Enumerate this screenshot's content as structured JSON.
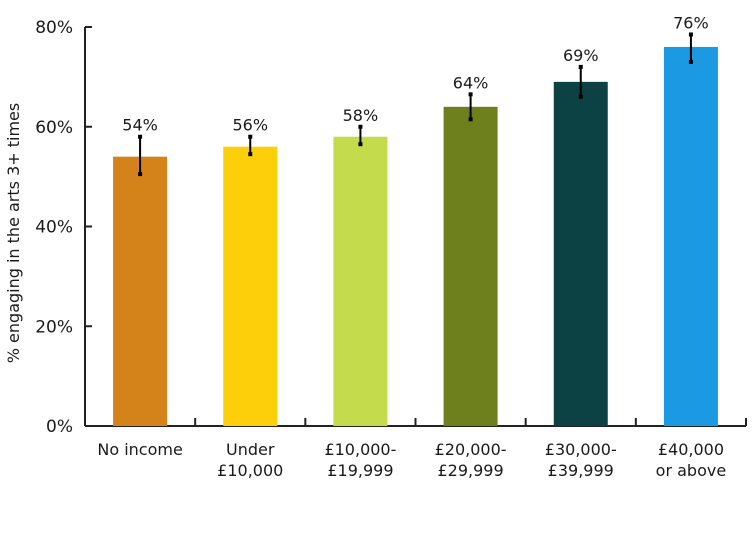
{
  "chart_data": {
    "type": "bar",
    "title": "",
    "xlabel": "",
    "ylabel": "% engaging in the arts 3+ times",
    "ylim": [
      0,
      80
    ],
    "yticks": [
      0,
      20,
      40,
      60,
      80
    ],
    "ytick_labels": [
      "0%",
      "20%",
      "40%",
      "60%",
      "80%"
    ],
    "grid": false,
    "categories": [
      [
        "No income"
      ],
      [
        "Under",
        "£10,000"
      ],
      [
        "£10,000-",
        "£19,999"
      ],
      [
        "£20,000-",
        "£29,999"
      ],
      [
        "£30,000-",
        "£39,999"
      ],
      [
        "£40,000",
        "or above"
      ]
    ],
    "values": [
      54,
      56,
      58,
      64,
      69,
      76
    ],
    "value_labels": [
      "54%",
      "56%",
      "58%",
      "64%",
      "69%",
      "76%"
    ],
    "error_bars": [
      [
        50.5,
        58
      ],
      [
        54.5,
        58
      ],
      [
        56.5,
        60
      ],
      [
        61.5,
        66.5
      ],
      [
        66,
        72
      ],
      [
        73,
        78.5
      ]
    ],
    "colors": [
      "#D4821A",
      "#FCCF0A",
      "#C4DB4C",
      "#6E7F1E",
      "#0C4243",
      "#1B9AE3"
    ]
  }
}
